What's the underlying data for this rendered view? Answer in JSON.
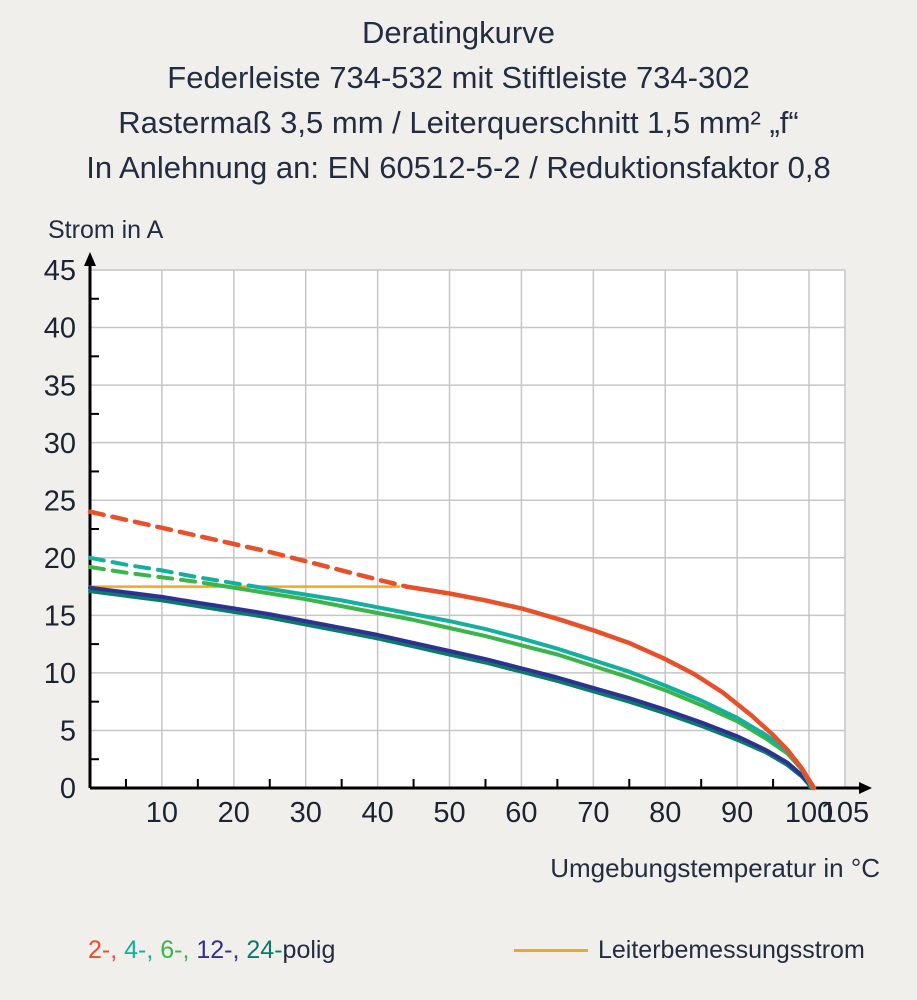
{
  "header": {
    "line1": "Deratingkurve",
    "line2": "Federleiste 734-532 mit Stiftleiste 734-302",
    "line3": "Rastermaß 3,5 mm / Leiterquerschnitt 1,5 mm² „f“",
    "line4": "In Anlehnung an: EN 60512-5-2 / Reduktionsfaktor 0,8"
  },
  "legend": {
    "poles": [
      {
        "name": "2-polig",
        "label": "2-,",
        "color": "#e8502a"
      },
      {
        "name": "4-polig",
        "label": "4-,",
        "color": "#13af9f"
      },
      {
        "name": "6-polig",
        "label": "6-,",
        "color": "#3cb44a"
      },
      {
        "name": "12-polig",
        "label": "12-,",
        "color": "#2d3192"
      },
      {
        "name": "24-polig",
        "label": "24-",
        "color": "#0b7a6b"
      }
    ],
    "poles_suffix": "polig",
    "rated_current_label": "Leiterbemessungsstrom",
    "rated_current_color": "#f6a81c"
  },
  "chart_data": {
    "type": "line",
    "title": "Deratingkurve",
    "subtitle": "Federleiste 734-532 mit Stiftleiste 734-302 / Rastermaß 3,5 mm / Leiterquerschnitt 1,5 mm² „f“ / In Anlehnung an: EN 60512-5-2 / Reduktionsfaktor 0,8",
    "x_axis": {
      "label": "Umgebungstemperatur in °C",
      "min": 0,
      "max": 105,
      "ticks": [
        10,
        20,
        30,
        40,
        50,
        60,
        70,
        80,
        90,
        100,
        105
      ],
      "minor_step": 5
    },
    "y_axis": {
      "label": "Strom in A",
      "min": 0,
      "max": 45,
      "ticks": [
        0,
        5,
        10,
        15,
        20,
        25,
        30,
        35,
        40,
        45
      ],
      "minor_step": 2.5
    },
    "grid": true,
    "series": [
      {
        "name": "Leiterbemessungsstrom",
        "color": "#f6a81c",
        "width": 2.5,
        "segments": [
          {
            "dashed": false,
            "points": [
              [
                0,
                17.5
              ],
              [
                43,
                17.5
              ]
            ]
          }
        ]
      },
      {
        "name": "24-polig",
        "color": "#0b7a6b",
        "width": 4,
        "segments": [
          {
            "dashed": false,
            "points": [
              [
                0,
                17.1
              ],
              [
                5,
                16.7
              ],
              [
                10,
                16.3
              ],
              [
                15,
                15.8
              ],
              [
                20,
                15.3
              ],
              [
                25,
                14.8
              ],
              [
                30,
                14.2
              ],
              [
                35,
                13.6
              ],
              [
                40,
                13.0
              ],
              [
                45,
                12.3
              ],
              [
                50,
                11.6
              ],
              [
                55,
                10.9
              ],
              [
                60,
                10.1
              ],
              [
                65,
                9.3
              ],
              [
                70,
                8.4
              ],
              [
                75,
                7.5
              ],
              [
                80,
                6.5
              ],
              [
                85,
                5.4
              ],
              [
                90,
                4.2
              ],
              [
                94,
                3.1
              ],
              [
                97,
                2.0
              ],
              [
                99,
                1.0
              ],
              [
                100,
                0.3
              ],
              [
                100.2,
                0
              ]
            ]
          }
        ]
      },
      {
        "name": "12-polig",
        "color": "#2d3192",
        "width": 4,
        "segments": [
          {
            "dashed": false,
            "points": [
              [
                0,
                17.4
              ],
              [
                5,
                17.0
              ],
              [
                10,
                16.6
              ],
              [
                15,
                16.1
              ],
              [
                20,
                15.6
              ],
              [
                25,
                15.1
              ],
              [
                30,
                14.5
              ],
              [
                35,
                13.9
              ],
              [
                40,
                13.3
              ],
              [
                45,
                12.6
              ],
              [
                50,
                11.9
              ],
              [
                55,
                11.2
              ],
              [
                60,
                10.4
              ],
              [
                65,
                9.6
              ],
              [
                70,
                8.7
              ],
              [
                75,
                7.8
              ],
              [
                80,
                6.8
              ],
              [
                85,
                5.7
              ],
              [
                90,
                4.5
              ],
              [
                94,
                3.3
              ],
              [
                97,
                2.2
              ],
              [
                99,
                1.1
              ],
              [
                100,
                0.4
              ],
              [
                100.3,
                0
              ]
            ]
          }
        ]
      },
      {
        "name": "6-polig",
        "color": "#3cb44a",
        "width": 4,
        "segments": [
          {
            "dashed": true,
            "points": [
              [
                0,
                19.2
              ],
              [
                5,
                18.7
              ],
              [
                10,
                18.3
              ],
              [
                15,
                17.9
              ],
              [
                18,
                17.6
              ]
            ]
          },
          {
            "dashed": false,
            "points": [
              [
                18,
                17.6
              ],
              [
                25,
                16.9
              ],
              [
                30,
                16.4
              ],
              [
                35,
                15.8
              ],
              [
                40,
                15.2
              ],
              [
                45,
                14.6
              ],
              [
                50,
                13.9
              ],
              [
                55,
                13.2
              ],
              [
                60,
                12.4
              ],
              [
                65,
                11.6
              ],
              [
                70,
                10.6
              ],
              [
                75,
                9.6
              ],
              [
                80,
                8.5
              ],
              [
                85,
                7.2
              ],
              [
                90,
                5.8
              ],
              [
                94,
                4.3
              ],
              [
                97,
                3.0
              ],
              [
                99,
                1.6
              ],
              [
                100,
                0.5
              ],
              [
                100.4,
                0
              ]
            ]
          }
        ]
      },
      {
        "name": "4-polig",
        "color": "#13af9f",
        "width": 4,
        "segments": [
          {
            "dashed": true,
            "points": [
              [
                0,
                20
              ],
              [
                5,
                19.4
              ],
              [
                10,
                18.9
              ],
              [
                15,
                18.3
              ],
              [
                20,
                17.8
              ],
              [
                23,
                17.5
              ]
            ]
          },
          {
            "dashed": false,
            "points": [
              [
                23,
                17.5
              ],
              [
                30,
                16.8
              ],
              [
                35,
                16.3
              ],
              [
                40,
                15.7
              ],
              [
                45,
                15.1
              ],
              [
                50,
                14.5
              ],
              [
                55,
                13.8
              ],
              [
                60,
                13.0
              ],
              [
                65,
                12.1
              ],
              [
                70,
                11.1
              ],
              [
                75,
                10.1
              ],
              [
                80,
                8.9
              ],
              [
                85,
                7.6
              ],
              [
                90,
                6.1
              ],
              [
                94,
                4.6
              ],
              [
                97,
                3.2
              ],
              [
                99,
                1.7
              ],
              [
                100,
                0.6
              ],
              [
                100.5,
                0
              ]
            ]
          }
        ]
      },
      {
        "name": "2-polig",
        "color": "#e8502a",
        "width": 4.5,
        "segments": [
          {
            "dashed": true,
            "points": [
              [
                0,
                24
              ],
              [
                5,
                23.3
              ],
              [
                10,
                22.6
              ],
              [
                15,
                21.9
              ],
              [
                20,
                21.2
              ],
              [
                25,
                20.5
              ],
              [
                30,
                19.7
              ],
              [
                35,
                18.9
              ],
              [
                40,
                18.1
              ],
              [
                44,
                17.5
              ]
            ]
          },
          {
            "dashed": false,
            "points": [
              [
                44,
                17.5
              ],
              [
                50,
                16.9
              ],
              [
                55,
                16.3
              ],
              [
                60,
                15.6
              ],
              [
                65,
                14.7
              ],
              [
                70,
                13.7
              ],
              [
                75,
                12.6
              ],
              [
                80,
                11.2
              ],
              [
                84,
                9.9
              ],
              [
                88,
                8.3
              ],
              [
                92,
                6.3
              ],
              [
                95,
                4.6
              ],
              [
                97,
                3.3
              ],
              [
                99,
                1.7
              ],
              [
                100,
                0.7
              ],
              [
                100.7,
                0
              ]
            ]
          }
        ]
      }
    ]
  }
}
